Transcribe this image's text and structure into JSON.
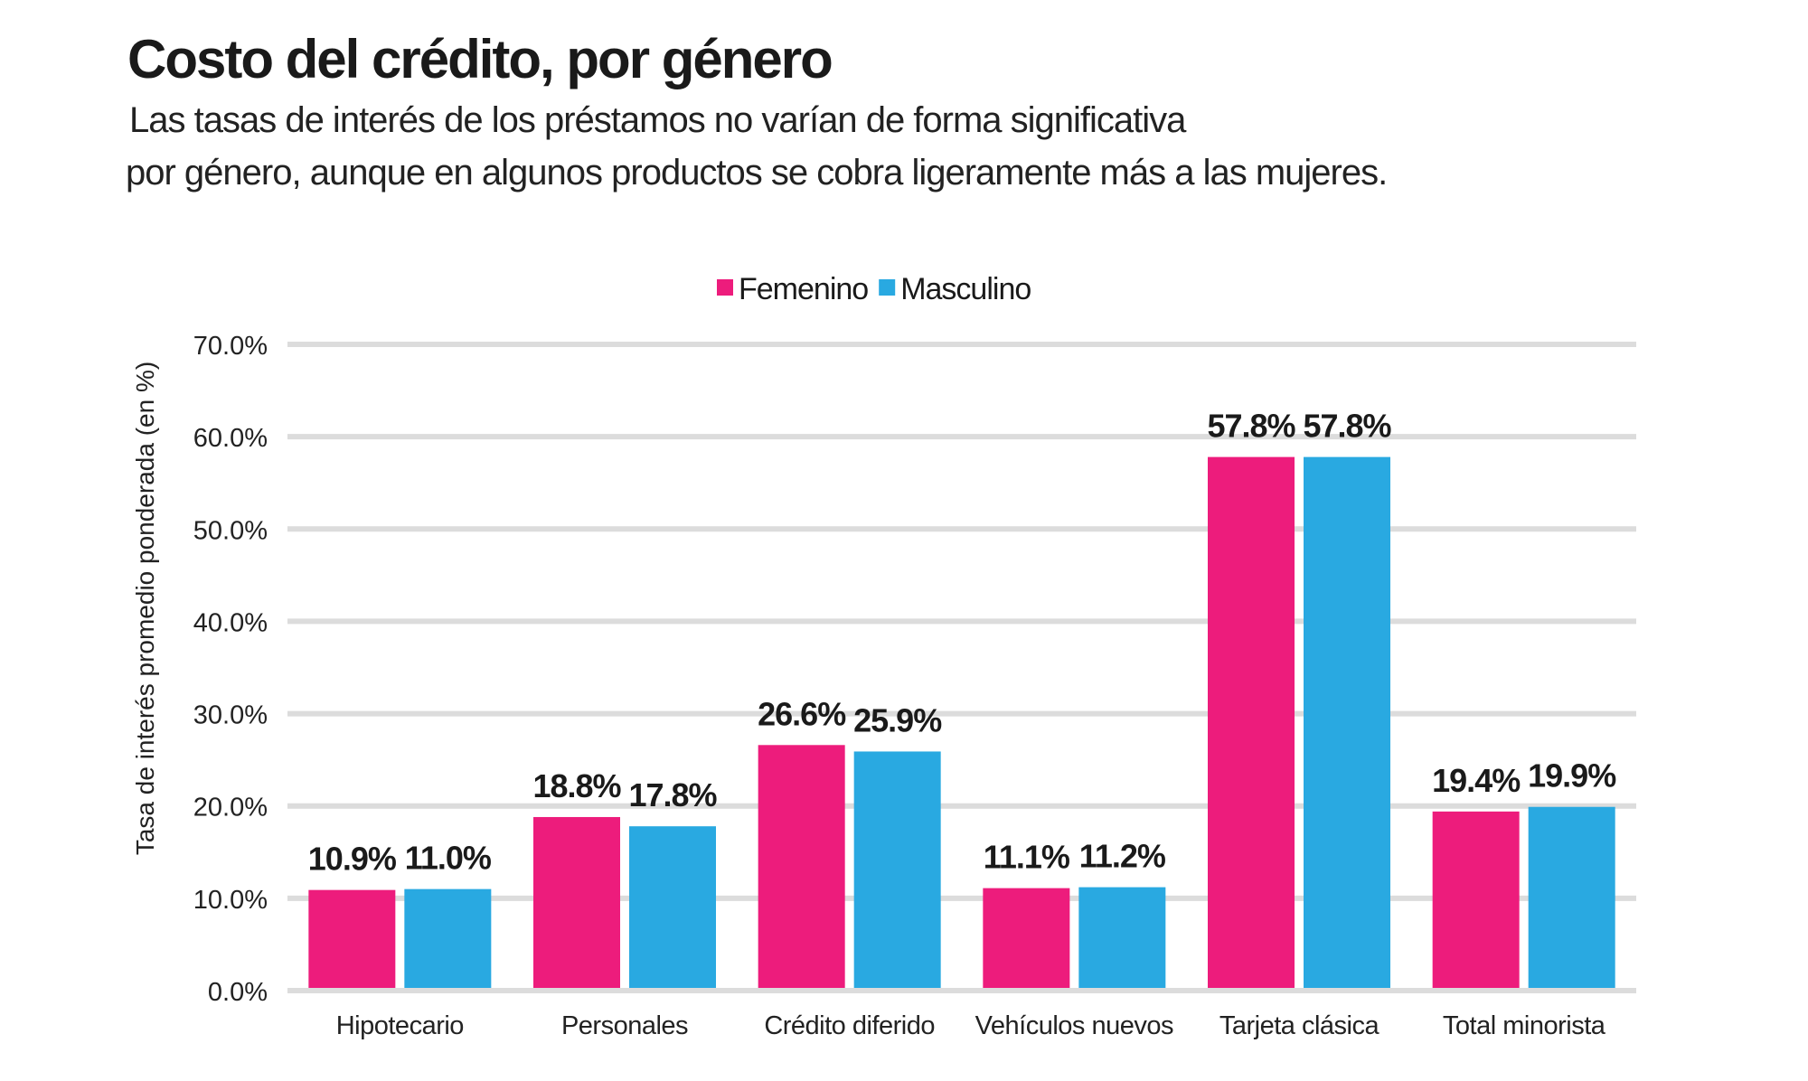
{
  "header": {
    "title": "Costo del crédito, por género",
    "subtitle_line1": "Las tasas de interés de los préstamos no varían de forma significativa",
    "subtitle_line2": "por género, aunque en algunos productos se cobra ligeramente más a  las mujeres."
  },
  "chart_data": {
    "type": "bar",
    "title": "Costo del crédito, por género",
    "xlabel": "",
    "ylabel": "Tasa de interés promedio ponderada (en %)",
    "ylim": [
      0,
      70
    ],
    "yticks": [
      0,
      10,
      20,
      30,
      40,
      50,
      60,
      70
    ],
    "ytick_labels": [
      "0.0%",
      "10.0%",
      "20.0%",
      "30.0%",
      "40.0%",
      "50.0%",
      "60.0%",
      "70.0%"
    ],
    "grid": true,
    "legend_placement": "top-center",
    "categories": [
      "Hipotecario",
      "Personales",
      "Crédito diferido",
      "Vehículos nuevos",
      "Tarjeta clásica",
      "Total minorista"
    ],
    "series": [
      {
        "name": "Femenino",
        "color": "#ed1c7c",
        "values": [
          10.9,
          18.8,
          26.6,
          11.1,
          57.8,
          19.4
        ],
        "labels": [
          "10.9%",
          "18.8%",
          "26.6%",
          "11.1%",
          "57.8%",
          "19.4%"
        ]
      },
      {
        "name": "Masculino",
        "color": "#29a9e1",
        "values": [
          11.0,
          17.8,
          25.9,
          11.2,
          57.8,
          19.9
        ],
        "labels": [
          "11.0%",
          "17.8%",
          "25.9%",
          "11.2%",
          "57.8%",
          "19.9%"
        ]
      }
    ],
    "grid_color": "#dcdcdc"
  }
}
